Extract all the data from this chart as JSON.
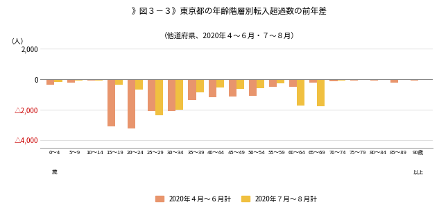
{
  "title": "》図３－３》東京都の年齢階層別転入超過数の前年差",
  "subtitle": "（他道府県、2020年４～６月・７～８月）",
  "ylabel": "（人）",
  "series1_label": "2020年４月～６月計",
  "series2_label": "2020年７月～８月計",
  "series1_color": "#E8956D",
  "series2_color": "#F0C040",
  "categories": [
    "0～4",
    "5～9",
    "10～14",
    "15～19",
    "20～24",
    "25～29",
    "30～34",
    "35～39",
    "40～44",
    "45～49",
    "50～54",
    "55～59",
    "60～64",
    "65～69",
    "70～74",
    "75～79",
    "80～84",
    "85～89",
    "90歳"
  ],
  "first_sublabel": "歳",
  "last_sublabel": "以上",
  "series1_values": [
    -380,
    -200,
    -100,
    -3100,
    -3250,
    -2100,
    -2100,
    -1350,
    -1200,
    -1150,
    -1100,
    -500,
    -500,
    -230,
    -150,
    -90,
    -80,
    -200,
    -70
  ],
  "series2_values": [
    -180,
    -100,
    -70,
    -370,
    -700,
    -2380,
    -2000,
    -850,
    -520,
    -640,
    -580,
    -260,
    -1750,
    -1780,
    -100,
    -50,
    -40,
    -45,
    -40
  ],
  "ylim": [
    -4500,
    2300
  ],
  "yticks_pos": [
    -4000,
    -2000,
    0,
    2000
  ],
  "background_color": "#ffffff",
  "grid_color": "#d0d0d0",
  "border_color": "#aaaaaa"
}
